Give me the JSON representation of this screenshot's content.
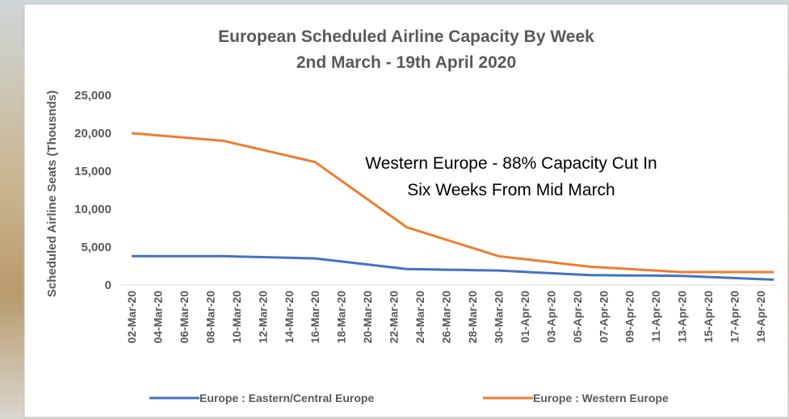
{
  "chart_data": {
    "type": "line",
    "title": "European Scheduled Airline Capacity By Week",
    "subtitle": "2nd March - 19th April 2020",
    "y_label": "Scheduled Airline Seats (Thousnds)",
    "annotation": [
      "Western Europe - 88% Capacity Cut In",
      "Six Weeks From Mid March"
    ],
    "categories": [
      "02-Mar-20",
      null,
      "04-Mar-20",
      null,
      "06-Mar-20",
      null,
      "08-Mar-20",
      null,
      "10-Mar-20",
      null,
      "12-Mar-20",
      null,
      "14-Mar-20",
      null,
      "16-Mar-20",
      null,
      "18-Mar-20",
      null,
      "20-Mar-20",
      null,
      "22-Mar-20",
      null,
      "24-Mar-20",
      null,
      "26-Mar-20",
      null,
      "28-Mar-20",
      null,
      "30-Mar-20",
      null,
      "01-Apr-20",
      null,
      "03-Apr-20",
      null,
      "05-Apr-20",
      null,
      "07-Apr-20",
      null,
      "09-Apr-20",
      null,
      "11-Apr-20",
      null,
      "13-Apr-20",
      null,
      "15-Apr-20",
      null,
      "17-Apr-20",
      null,
      "19-Apr-20",
      null
    ],
    "series": [
      {
        "name": "Europe : Eastern/Central Europe",
        "color": "#4472c4",
        "values": [
          3800,
          3800,
          3800,
          3800,
          3800,
          3800,
          3800,
          3800,
          3757,
          3714,
          3671,
          3629,
          3586,
          3543,
          3500,
          3300,
          3100,
          2900,
          2700,
          2500,
          2300,
          2100,
          2071,
          2043,
          2014,
          1986,
          1957,
          1929,
          1900,
          1814,
          1729,
          1643,
          1557,
          1471,
          1386,
          1300,
          1286,
          1271,
          1257,
          1243,
          1229,
          1214,
          1200,
          1129,
          1057,
          986,
          914,
          843,
          771,
          700
        ]
      },
      {
        "name": "Europe : Western Europe",
        "color": "#ed7d31",
        "values": [
          20000,
          19857,
          19714,
          19571,
          19429,
          19286,
          19143,
          19000,
          18600,
          18200,
          17800,
          17400,
          17000,
          16600,
          16200,
          14971,
          13743,
          12514,
          11286,
          10057,
          8829,
          7600,
          7057,
          6514,
          5971,
          5429,
          4886,
          4343,
          3800,
          3600,
          3400,
          3200,
          3000,
          2800,
          2600,
          2400,
          2300,
          2200,
          2100,
          2000,
          1900,
          1800,
          1700,
          1700,
          1700,
          1700,
          1700,
          1700,
          1700,
          1700
        ]
      }
    ],
    "ylim": [
      0,
      25000
    ],
    "yticks": [
      0,
      {
        "value": 5000,
        "label": "5,000"
      },
      {
        "value": 10000,
        "label": "10,000"
      },
      {
        "value": 15000,
        "label": "15,000"
      },
      {
        "value": 20000,
        "label": "20,000"
      },
      {
        "value": 25000,
        "label": "25,000"
      }
    ],
    "grid": false,
    "legend": "bottom"
  }
}
